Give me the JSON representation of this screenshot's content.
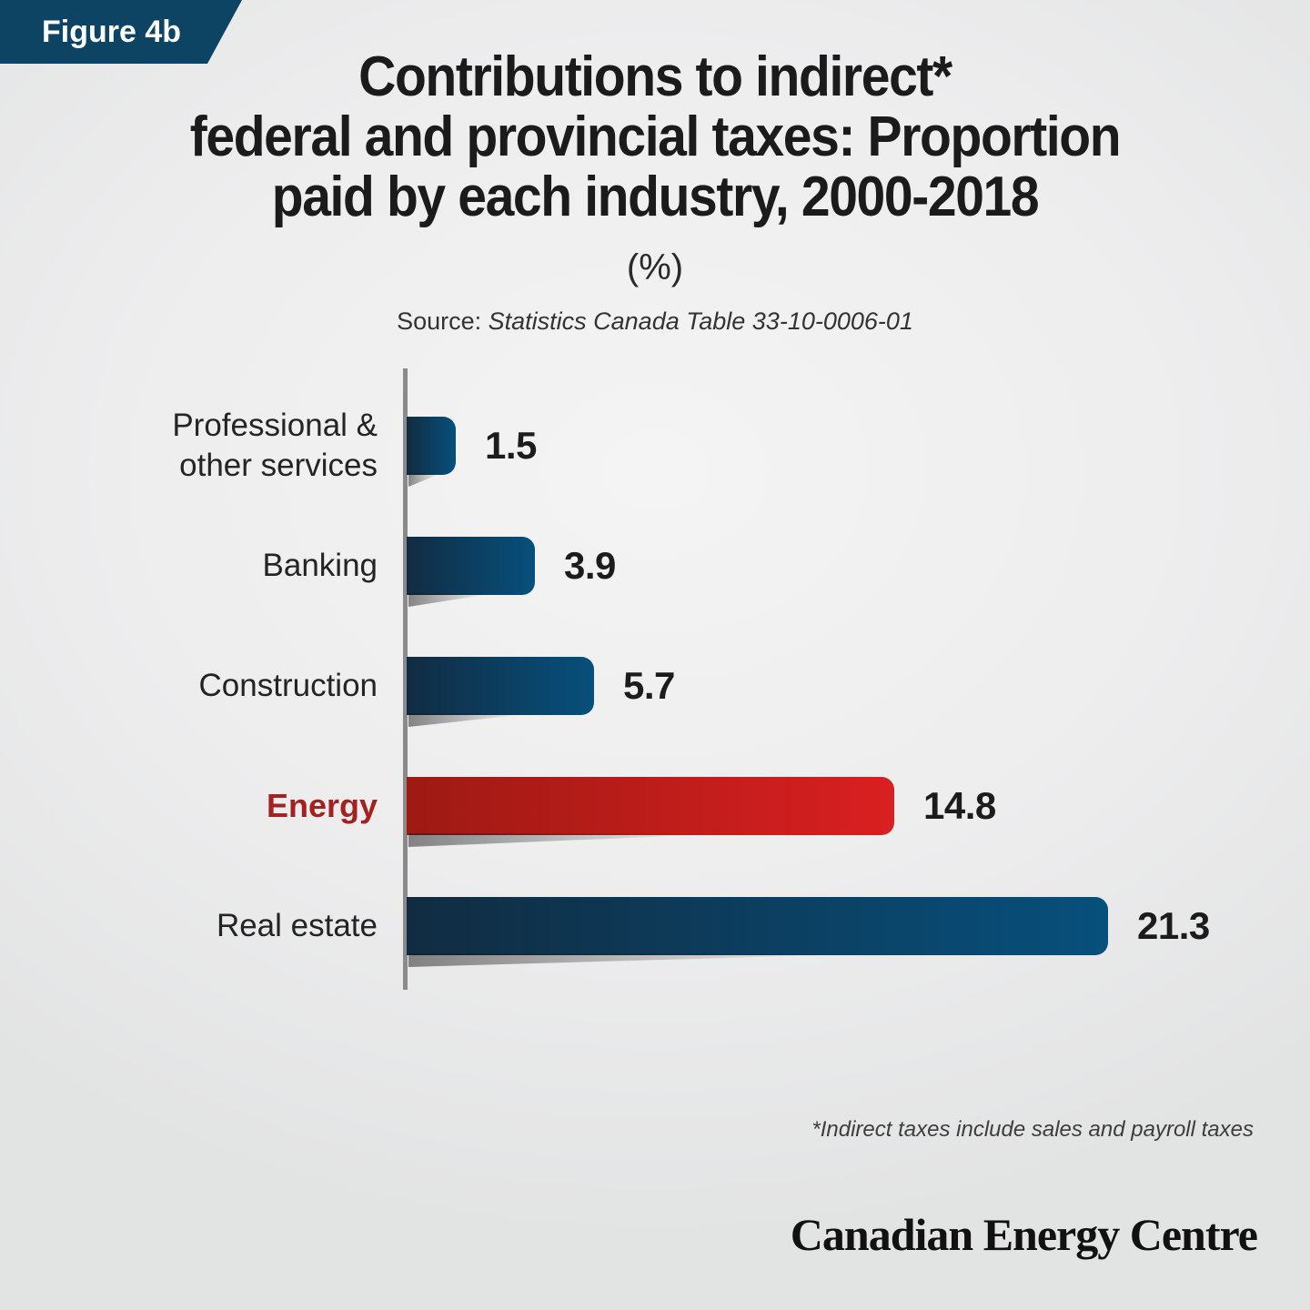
{
  "figure_label": "Figure 4b",
  "title": {
    "line1": "Contributions to indirect*",
    "line2": "federal and provincial taxes: Proportion",
    "line3": "paid by each industry, 2000-2018"
  },
  "subtitle": "(%)",
  "source": {
    "prefix": "Source: ",
    "text": "Statistics Canada Table 33-10-0006-01"
  },
  "footnote": "*Indirect taxes include sales and payroll taxes",
  "brand": "Canadian Energy Centre",
  "colors": {
    "badge_bg": "#0d4363",
    "badge_text": "#ffffff",
    "title_text": "#1b1b1b",
    "bar_gradient": [
      "#112c42",
      "#07507c"
    ],
    "highlight_gradient": [
      "#9e1a13",
      "#da1f21"
    ],
    "highlight_label": "#a32220",
    "value_text": "#1c1c1c",
    "category_text": "#242424",
    "axis": "#8a8a8a"
  },
  "chart_data": {
    "type": "bar",
    "orientation": "horizontal",
    "title": "Contributions to indirect* federal and provincial taxes: Proportion paid by each industry, 2000-2018",
    "unit": "%",
    "categories": [
      "Professional & other services",
      "Banking",
      "Construction",
      "Energy",
      "Real estate"
    ],
    "values": [
      1.5,
      3.9,
      5.7,
      14.8,
      21.3
    ],
    "highlight_index": 3,
    "highlight_category": "Energy",
    "xlim": [
      0,
      22
    ],
    "grid": false,
    "legend": false,
    "value_labels": true
  }
}
